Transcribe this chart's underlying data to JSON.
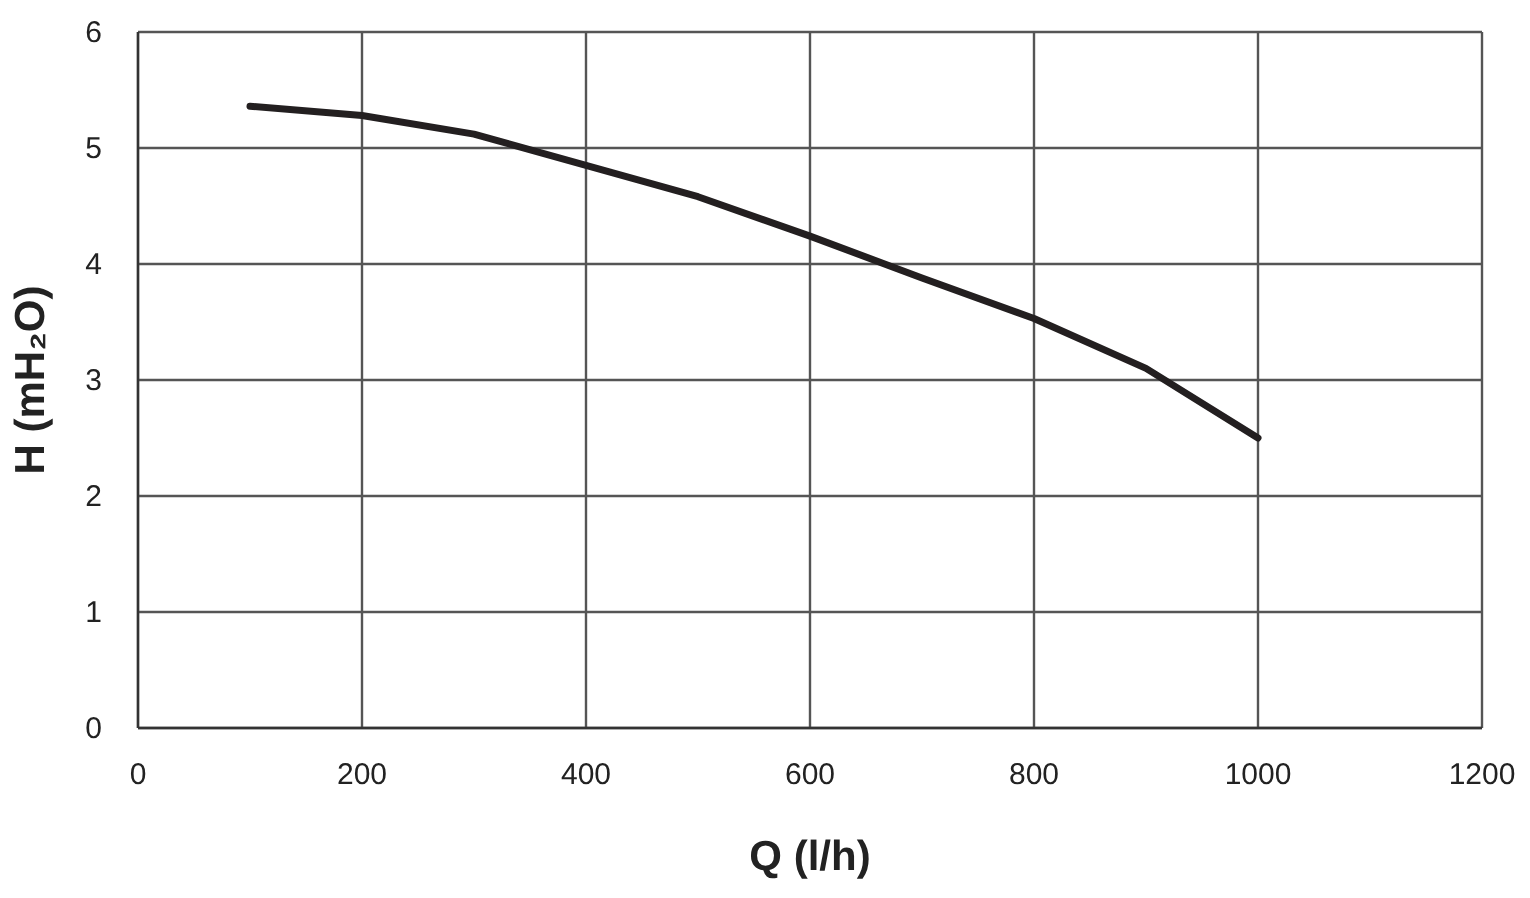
{
  "chart_data": {
    "type": "line",
    "xlabel": "Q (l/h)",
    "ylabel": "H (mH₂O)",
    "xlim": [
      0,
      1200
    ],
    "ylim": [
      0,
      6
    ],
    "xticks": [
      0,
      200,
      400,
      600,
      800,
      1000,
      1200
    ],
    "yticks": [
      0,
      1,
      2,
      3,
      4,
      5,
      6
    ],
    "grid": true,
    "series": [
      {
        "color": "#231f20",
        "x": [
          100,
          200,
          300,
          400,
          500,
          600,
          700,
          800,
          900,
          1000
        ],
        "values": [
          5.36,
          5.28,
          5.12,
          4.85,
          4.58,
          4.24,
          3.88,
          3.53,
          3.1,
          2.5
        ]
      }
    ]
  }
}
